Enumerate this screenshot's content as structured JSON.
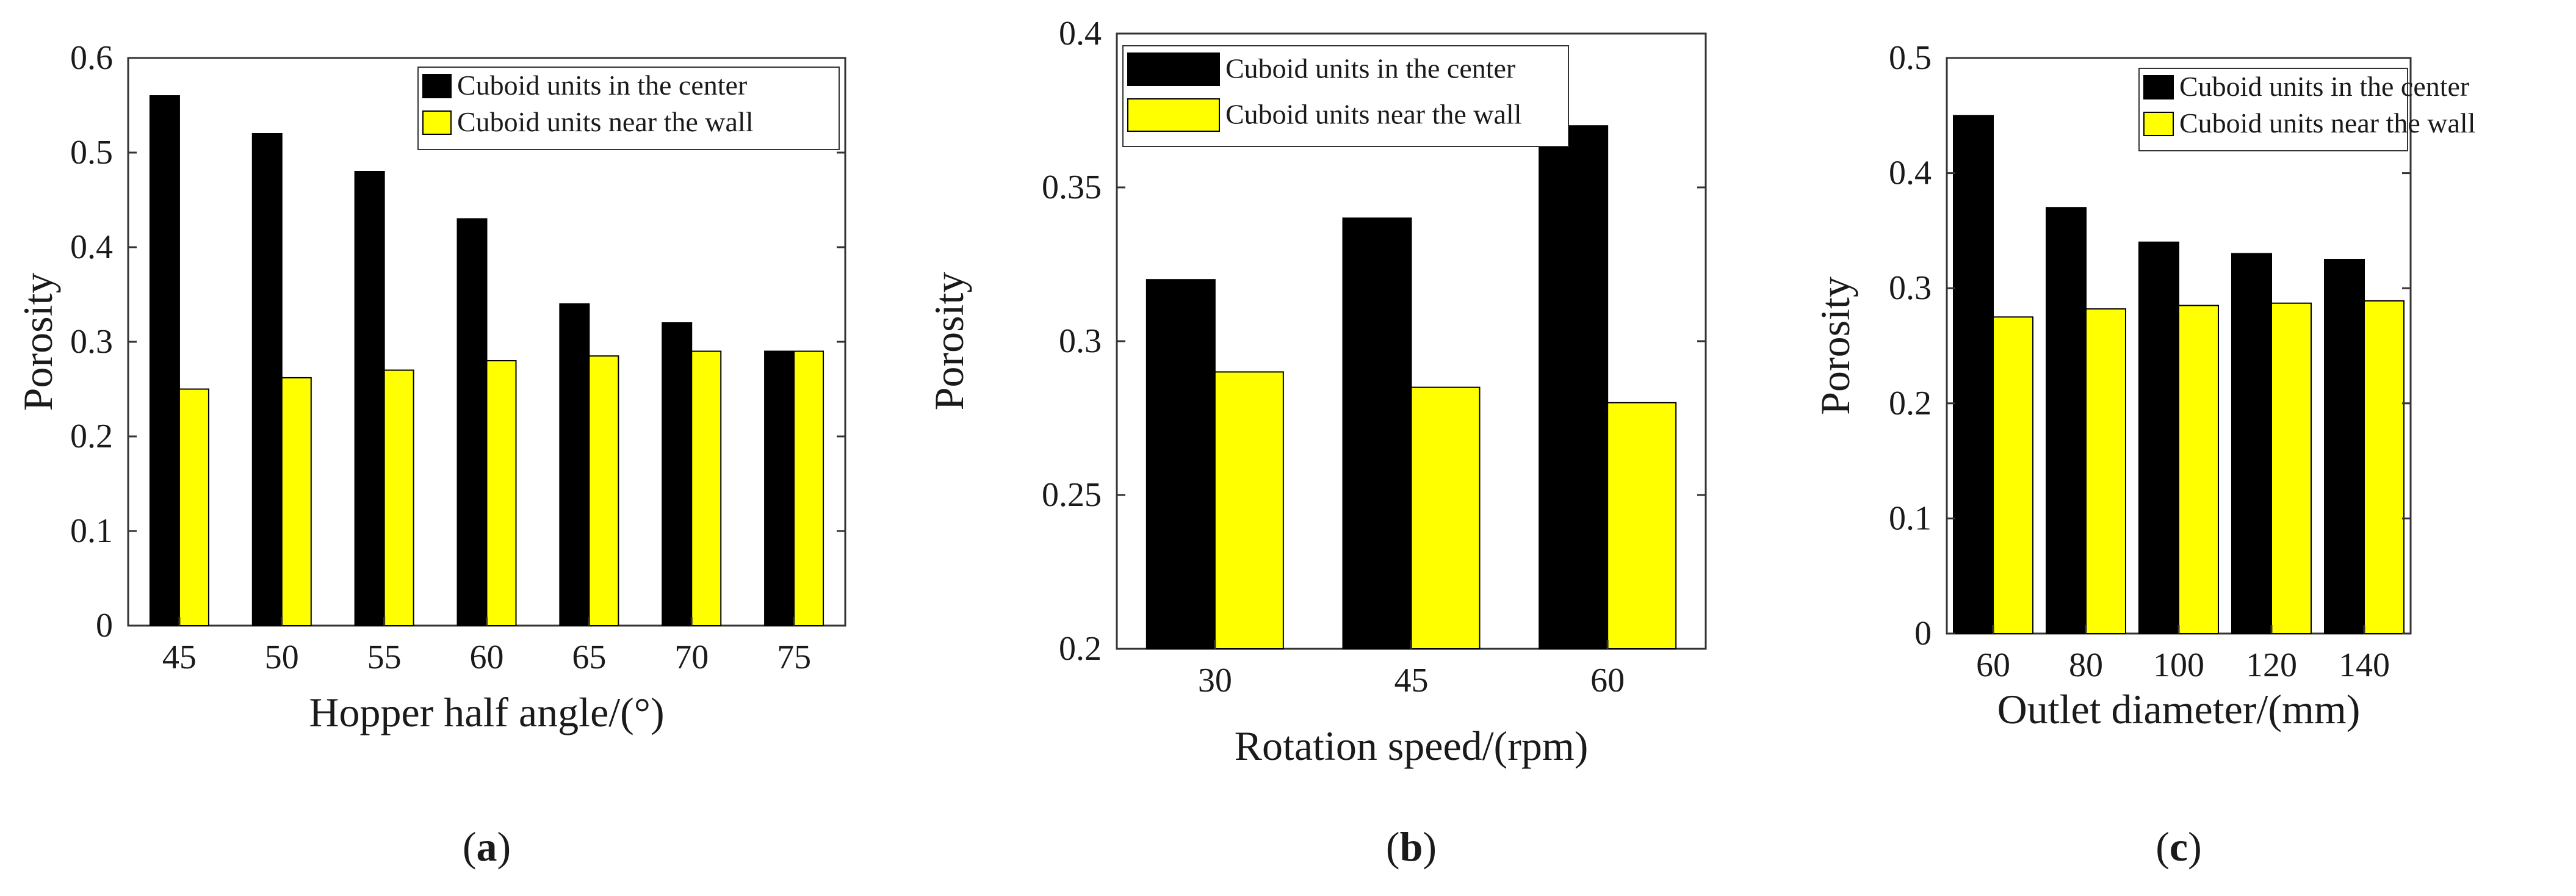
{
  "colors": {
    "center": "#000000",
    "wall": "#ffff00",
    "axis": "#333333",
    "text": "#1a1a1a"
  },
  "chart_data": [
    {
      "type": "bar",
      "panel": "a",
      "categories": [
        "45",
        "50",
        "55",
        "60",
        "65",
        "70",
        "75"
      ],
      "series": [
        {
          "name": "Cuboid units in the center",
          "values": [
            0.56,
            0.52,
            0.48,
            0.43,
            0.34,
            0.32,
            0.29
          ]
        },
        {
          "name": "Cuboid units near the wall",
          "values": [
            0.25,
            0.262,
            0.27,
            0.28,
            0.285,
            0.29,
            0.29
          ]
        }
      ],
      "xlabel": "Hopper half angle/(°)",
      "ylabel": "Porosity",
      "ylim": [
        0,
        0.6
      ],
      "yticks": [
        "0",
        "0.1",
        "0.2",
        "0.3",
        "0.4",
        "0.5",
        "0.6"
      ],
      "legend": "top-right",
      "grid": false,
      "label_open": "(",
      "label_letter": "a",
      "label_close": ")"
    },
    {
      "type": "bar",
      "panel": "b",
      "categories": [
        "30",
        "45",
        "60"
      ],
      "series": [
        {
          "name": "Cuboid units in the center",
          "values": [
            0.32,
            0.34,
            0.37
          ]
        },
        {
          "name": "Cuboid units near the wall",
          "values": [
            0.29,
            0.285,
            0.28
          ]
        }
      ],
      "xlabel": "Rotation speed/(rpm)",
      "ylabel": "Porosity",
      "ylim": [
        0.2,
        0.4
      ],
      "yticks": [
        "0.2",
        "0.25",
        "0.3",
        "0.35",
        "0.4"
      ],
      "legend": "top-left",
      "grid": false,
      "label_open": "(",
      "label_letter": "b",
      "label_close": ")"
    },
    {
      "type": "bar",
      "panel": "c",
      "categories": [
        "60",
        "80",
        "100",
        "120",
        "140"
      ],
      "series": [
        {
          "name": "Cuboid units in the center",
          "values": [
            0.45,
            0.37,
            0.34,
            0.33,
            0.325
          ]
        },
        {
          "name": "Cuboid units near the wall",
          "values": [
            0.275,
            0.282,
            0.285,
            0.287,
            0.289
          ]
        }
      ],
      "xlabel": "Outlet diameter/(mm)",
      "ylabel": "Porosity",
      "ylim": [
        0,
        0.5
      ],
      "yticks": [
        "0",
        "0.1",
        "0.2",
        "0.3",
        "0.4",
        "0.5"
      ],
      "legend": "top-right",
      "grid": false,
      "label_open": "(",
      "label_letter": "c",
      "label_close": ")"
    }
  ]
}
